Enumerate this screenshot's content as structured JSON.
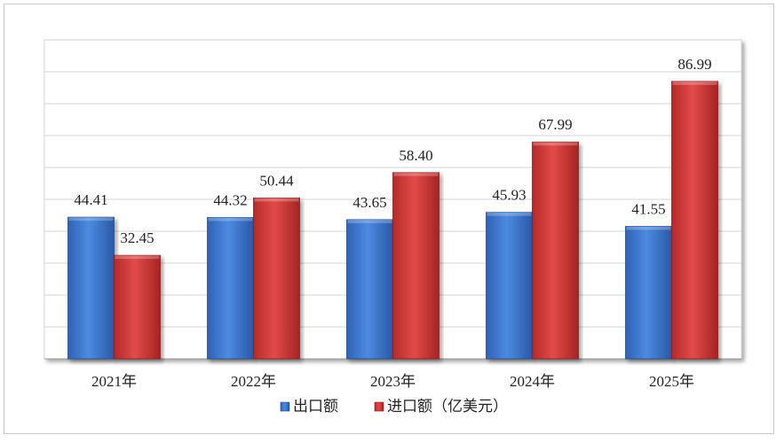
{
  "chart_data": {
    "type": "bar",
    "categories": [
      "2021年",
      "2022年",
      "2023年",
      "2024年",
      "2025年"
    ],
    "series": [
      {
        "name": "出口额",
        "values": [
          44.41,
          44.32,
          43.65,
          45.93,
          41.55
        ],
        "labels": [
          "44.41",
          "44.32",
          "43.65",
          "45.93",
          "41.55"
        ]
      },
      {
        "name": "进口额（亿美元）",
        "values": [
          32.45,
          50.44,
          58.4,
          67.99,
          86.99
        ],
        "labels": [
          "32.45",
          "50.44",
          "58.40",
          "67.99",
          "86.99"
        ]
      }
    ],
    "ylim": [
      0,
      100
    ],
    "grid": true,
    "legend_position": "bottom",
    "colors": {
      "series_0": "#3b78d0",
      "series_1": "#d23b3b"
    }
  }
}
